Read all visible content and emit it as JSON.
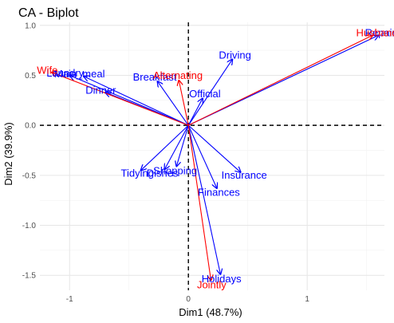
{
  "chart_data": {
    "type": "scatter",
    "title": "CA - Biplot",
    "xlabel": "Dim1 (48.7%)",
    "ylabel": "Dim2 (39.9%)",
    "xlim": [
      -1.25,
      1.65
    ],
    "ylim": [
      -1.65,
      1.03
    ],
    "xticks": [
      -1,
      0,
      1
    ],
    "yticks": [
      -1.5,
      -1.0,
      -0.5,
      0.0,
      0.5,
      1.0
    ],
    "xtick_labels": [
      "-1",
      "0",
      "1"
    ],
    "ytick_labels": [
      "-1.5",
      "-1.0",
      "-0.5",
      "0.0",
      "0.5",
      "1.0"
    ],
    "grid": true,
    "reference_lines": [
      0,
      0
    ],
    "series": [
      {
        "name": "rows",
        "color": "#0000ff",
        "points": [
          {
            "label": "Laundry",
            "x": -1.0,
            "y": 0.5
          },
          {
            "label": "Main_meal",
            "x": -0.88,
            "y": 0.49
          },
          {
            "label": "Dinner",
            "x": -0.7,
            "y": 0.33
          },
          {
            "label": "Breakfast",
            "x": -0.26,
            "y": 0.44
          },
          {
            "label": "Tidying",
            "x": -0.4,
            "y": -0.45
          },
          {
            "label": "Dishes",
            "x": -0.2,
            "y": -0.44
          },
          {
            "label": "Shopping",
            "x": -0.1,
            "y": -0.41
          },
          {
            "label": "Official",
            "x": 0.12,
            "y": 0.27
          },
          {
            "label": "Driving",
            "x": 0.37,
            "y": 0.66
          },
          {
            "label": "Finances",
            "x": 0.24,
            "y": -0.63
          },
          {
            "label": "Insurance",
            "x": 0.44,
            "y": -0.47
          },
          {
            "label": "Repairs",
            "x": 1.6,
            "y": 0.9
          },
          {
            "label": "Holidays",
            "x": 0.27,
            "y": -1.49
          }
        ]
      },
      {
        "name": "columns",
        "color": "#ff0000",
        "points": [
          {
            "label": "Wife",
            "x": -1.15,
            "y": 0.53
          },
          {
            "label": "Alternating",
            "x": -0.08,
            "y": 0.45
          },
          {
            "label": "Husband",
            "x": 1.55,
            "y": 0.9
          },
          {
            "label": "Jointly",
            "x": 0.19,
            "y": -1.55
          }
        ]
      }
    ]
  }
}
